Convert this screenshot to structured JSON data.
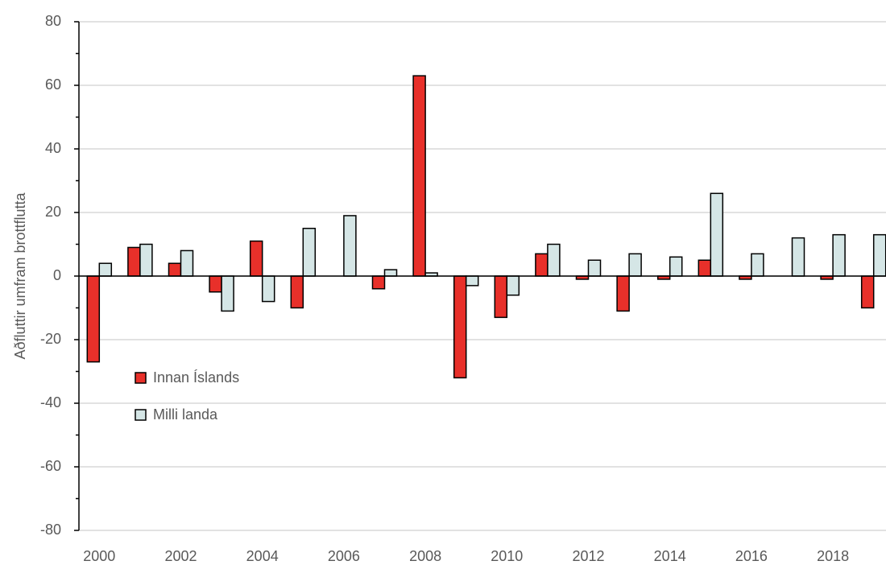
{
  "chart_data": {
    "type": "bar",
    "ylabel": "Aðfluttir umfram brottflutta",
    "categories": [
      "2000",
      null,
      "2002",
      null,
      "2004",
      null,
      "2006",
      null,
      "2008",
      null,
      "2010",
      null,
      "2012",
      null,
      "2014",
      null,
      "2016",
      null,
      "2018",
      null
    ],
    "series": [
      {
        "name": "Innan Íslands",
        "color": "#e8302a",
        "values": [
          -27,
          9,
          4,
          -5,
          11,
          -10,
          0,
          -4,
          63,
          -32,
          -13,
          7,
          -1,
          -11,
          -1,
          5,
          -1,
          0,
          -1,
          -10
        ]
      },
      {
        "name": "Milli landa",
        "color": "#d5e6e6",
        "values": [
          4,
          10,
          8,
          -11,
          -8,
          15,
          19,
          2,
          1,
          -3,
          -6,
          10,
          5,
          7,
          6,
          26,
          7,
          12,
          13,
          13
        ]
      }
    ],
    "ylim": [
      -80,
      80
    ],
    "yticks": [
      -80,
      -60,
      -40,
      -20,
      0,
      20,
      40,
      60,
      80
    ],
    "grid": true,
    "legend": "lower left"
  }
}
